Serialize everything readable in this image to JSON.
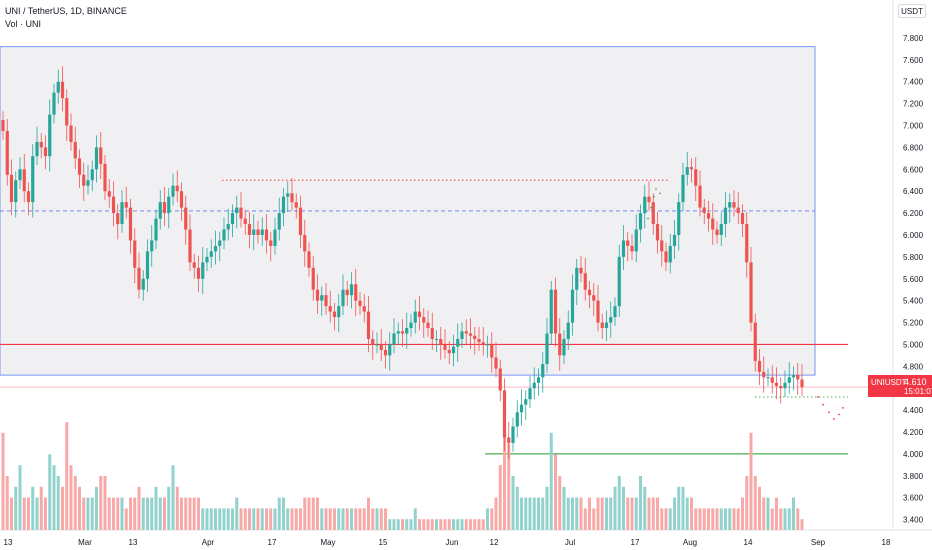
{
  "legend": {
    "title": "UNI / TetherUS, 1D, BINANCE",
    "volume": "Vol · UNI"
  },
  "currency_button": "USDT",
  "price_tag": {
    "symbol": "UNIUSDT",
    "value": "4.610",
    "countdown": "15:01:07"
  },
  "colors": {
    "up": "#26a69a",
    "down": "#ef5350",
    "range_box": "#f0f0f3",
    "support_red": "#f23645",
    "support_green": "#4caf50",
    "blue": "#5b7cf0"
  },
  "chart_data": {
    "type": "candlestick",
    "title": "UNI / TetherUS, 1D, BINANCE",
    "ylim": [
      3.25,
      7.9
    ],
    "y_ticks": [
      "7.800",
      "7.600",
      "7.400",
      "7.200",
      "7.000",
      "6.800",
      "6.600",
      "6.400",
      "6.200",
      "6.000",
      "5.800",
      "5.600",
      "5.400",
      "5.200",
      "5.000",
      "4.800",
      "4.600",
      "4.400",
      "4.200",
      "4.000",
      "3.800",
      "3.600",
      "3.400"
    ],
    "x_ticks": [
      "13",
      "Mar",
      "13",
      "Apr",
      "17",
      "May",
      "15",
      "Jun",
      "12",
      "Jul",
      "17",
      "Aug",
      "14",
      "Sep",
      "18"
    ],
    "first_date": "2023-02-09",
    "closes": [
      6.95,
      6.55,
      6.3,
      6.5,
      6.6,
      6.4,
      6.3,
      6.72,
      6.85,
      6.8,
      6.72,
      7.1,
      7.3,
      7.4,
      7.25,
      7.0,
      6.85,
      6.7,
      6.55,
      6.45,
      6.5,
      6.6,
      6.8,
      6.65,
      6.4,
      6.35,
      6.2,
      6.1,
      6.3,
      6.25,
      5.95,
      5.7,
      5.5,
      5.6,
      5.85,
      5.95,
      6.15,
      6.3,
      6.2,
      6.35,
      6.45,
      6.4,
      6.25,
      6.05,
      5.75,
      5.7,
      5.6,
      5.75,
      5.8,
      5.85,
      5.9,
      5.95,
      6.05,
      6.1,
      6.2,
      6.25,
      6.15,
      6.1,
      6.0,
      6.05,
      6.0,
      6.05,
      5.95,
      5.9,
      6.05,
      6.2,
      6.35,
      6.38,
      6.3,
      6.25,
      6.0,
      5.85,
      5.7,
      5.5,
      5.4,
      5.45,
      5.35,
      5.3,
      5.25,
      5.35,
      5.5,
      5.45,
      5.55,
      5.4,
      5.35,
      5.3,
      5.05,
      5.0,
      5.0,
      4.95,
      4.9,
      5.0,
      5.1,
      5.12,
      5.1,
      5.15,
      5.2,
      5.3,
      5.25,
      5.2,
      5.15,
      5.05,
      5.05,
      5.0,
      4.95,
      4.92,
      4.98,
      5.05,
      5.12,
      5.1,
      5.08,
      5.05,
      5.02,
      5.0,
      5.0,
      4.88,
      4.78,
      4.58,
      4.15,
      4.1,
      4.25,
      4.38,
      4.45,
      4.5,
      4.6,
      4.65,
      4.7,
      4.82,
      5.1,
      5.5,
      5.1,
      4.9,
      5.05,
      5.2,
      5.5,
      5.7,
      5.65,
      5.5,
      5.45,
      5.4,
      5.2,
      5.15,
      5.2,
      5.25,
      5.35,
      5.8,
      5.95,
      5.9,
      5.85,
      6.05,
      6.2,
      6.35,
      6.3,
      6.1,
      5.95,
      5.85,
      5.75,
      5.9,
      6.0,
      6.3,
      6.55,
      6.62,
      6.6,
      6.45,
      6.25,
      6.2,
      6.15,
      6.05,
      6.0,
      6.1,
      6.25,
      6.3,
      6.25,
      6.2,
      6.1,
      5.75,
      5.2,
      4.85,
      4.75,
      4.7,
      4.7,
      4.65,
      4.62,
      4.6,
      4.65,
      4.7,
      4.72,
      4.68,
      4.61
    ],
    "volume_ylim": [
      0,
      1
    ],
    "volumes": [
      0.9,
      0.5,
      0.3,
      0.4,
      0.6,
      0.3,
      0.3,
      0.4,
      0.3,
      0.4,
      0.3,
      0.7,
      0.6,
      0.5,
      0.4,
      1.0,
      0.6,
      0.5,
      0.4,
      0.3,
      0.3,
      0.3,
      0.4,
      0.5,
      0.5,
      0.3,
      0.3,
      0.3,
      0.3,
      0.2,
      0.3,
      0.3,
      0.4,
      0.3,
      0.3,
      0.3,
      0.4,
      0.3,
      0.3,
      0.4,
      0.6,
      0.4,
      0.3,
      0.3,
      0.3,
      0.3,
      0.3,
      0.2,
      0.2,
      0.2,
      0.2,
      0.2,
      0.2,
      0.2,
      0.2,
      0.3,
      0.2,
      0.2,
      0.2,
      0.2,
      0.2,
      0.2,
      0.2,
      0.2,
      0.2,
      0.3,
      0.3,
      0.2,
      0.2,
      0.2,
      0.2,
      0.3,
      0.3,
      0.3,
      0.3,
      0.2,
      0.2,
      0.2,
      0.2,
      0.2,
      0.2,
      0.2,
      0.2,
      0.2,
      0.2,
      0.2,
      0.3,
      0.2,
      0.2,
      0.2,
      0.2,
      0.1,
      0.1,
      0.1,
      0.1,
      0.1,
      0.1,
      0.2,
      0.1,
      0.1,
      0.1,
      0.1,
      0.1,
      0.1,
      0.1,
      0.1,
      0.1,
      0.1,
      0.1,
      0.1,
      0.1,
      0.1,
      0.1,
      0.1,
      0.2,
      0.2,
      0.3,
      0.6,
      1.0,
      0.8,
      0.5,
      0.4,
      0.3,
      0.3,
      0.3,
      0.3,
      0.3,
      0.3,
      0.4,
      0.9,
      0.7,
      0.5,
      0.4,
      0.3,
      0.3,
      0.3,
      0.3,
      0.2,
      0.3,
      0.2,
      0.3,
      0.3,
      0.3,
      0.3,
      0.4,
      0.5,
      0.4,
      0.3,
      0.3,
      0.3,
      0.5,
      0.4,
      0.3,
      0.3,
      0.3,
      0.2,
      0.2,
      0.2,
      0.3,
      0.4,
      0.4,
      0.3,
      0.3,
      0.2,
      0.2,
      0.2,
      0.2,
      0.2,
      0.2,
      0.2,
      0.2,
      0.2,
      0.2,
      0.2,
      0.3,
      0.5,
      0.9,
      0.5,
      0.4,
      0.3,
      0.3,
      0.2,
      0.3,
      0.2,
      0.2,
      0.2,
      0.3,
      0.2,
      0.1
    ],
    "annotations": {
      "range_box": {
        "y_top": 7.72,
        "y_bottom": 4.72
      },
      "red_support": 5.0,
      "green_support": 4.0,
      "blue_dashed": 6.22,
      "red_dotted_resistance": 6.5,
      "current_price_line": 4.61
    }
  }
}
